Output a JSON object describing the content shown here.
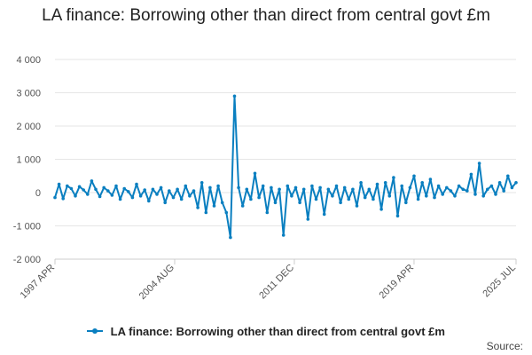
{
  "chart_data": {
    "type": "line",
    "title": "LA finance: Borrowing other than direct from central govt £m",
    "xlabel": "",
    "ylabel": "",
    "ylim": [
      -2000,
      4000
    ],
    "y_ticks": [
      -2000,
      -1000,
      0,
      1000,
      2000,
      3000,
      4000
    ],
    "y_tick_labels": [
      "-2 000",
      "-1 000",
      "0",
      "1 000",
      "2 000",
      "3 000",
      "4 000"
    ],
    "x_range": [
      "1997-04",
      "2025-07"
    ],
    "x_ticks": [
      {
        "date": "1997-04",
        "label": "1997 APR"
      },
      {
        "date": "2004-08",
        "label": "2004 AUG"
      },
      {
        "date": "2011-12",
        "label": "2011 DEC"
      },
      {
        "date": "2019-04",
        "label": "2019 APR"
      },
      {
        "date": "2025-07",
        "label": "2025 JUL"
      }
    ],
    "grid": true,
    "legend_position": "bottom",
    "color": "#0a7fc0",
    "series": [
      {
        "name": "LA finance: Borrowing other than direct from central govt £m",
        "points": [
          [
            "1997-04",
            -150
          ],
          [
            "1997-07",
            250
          ],
          [
            "1997-10",
            -180
          ],
          [
            "1998-01",
            200
          ],
          [
            "1998-04",
            120
          ],
          [
            "1998-07",
            -100
          ],
          [
            "1998-10",
            180
          ],
          [
            "1999-01",
            80
          ],
          [
            "1999-04",
            -50
          ],
          [
            "1999-07",
            350
          ],
          [
            "1999-10",
            100
          ],
          [
            "2000-01",
            -120
          ],
          [
            "2000-04",
            150
          ],
          [
            "2000-07",
            50
          ],
          [
            "2000-10",
            -80
          ],
          [
            "2001-01",
            200
          ],
          [
            "2001-04",
            -200
          ],
          [
            "2001-07",
            120
          ],
          [
            "2001-10",
            30
          ],
          [
            "2002-01",
            -150
          ],
          [
            "2002-04",
            250
          ],
          [
            "2002-07",
            -100
          ],
          [
            "2002-10",
            80
          ],
          [
            "2003-01",
            -250
          ],
          [
            "2003-04",
            100
          ],
          [
            "2003-07",
            -50
          ],
          [
            "2003-10",
            150
          ],
          [
            "2004-01",
            -300
          ],
          [
            "2004-04",
            50
          ],
          [
            "2004-07",
            -150
          ],
          [
            "2004-10",
            100
          ],
          [
            "2005-01",
            -200
          ],
          [
            "2005-04",
            200
          ],
          [
            "2005-07",
            -100
          ],
          [
            "2005-10",
            50
          ],
          [
            "2006-01",
            -450
          ],
          [
            "2006-04",
            300
          ],
          [
            "2006-07",
            -600
          ],
          [
            "2006-10",
            150
          ],
          [
            "2007-01",
            -400
          ],
          [
            "2007-04",
            200
          ],
          [
            "2007-07",
            -300
          ],
          [
            "2007-10",
            -600
          ],
          [
            "2008-01",
            -1350
          ],
          [
            "2008-04",
            2900
          ],
          [
            "2008-07",
            150
          ],
          [
            "2008-10",
            -400
          ],
          [
            "2009-01",
            100
          ],
          [
            "2009-04",
            -200
          ],
          [
            "2009-07",
            580
          ],
          [
            "2009-10",
            -150
          ],
          [
            "2010-01",
            200
          ],
          [
            "2010-04",
            -600
          ],
          [
            "2010-07",
            150
          ],
          [
            "2010-10",
            -300
          ],
          [
            "2011-01",
            100
          ],
          [
            "2011-04",
            -1280
          ],
          [
            "2011-07",
            200
          ],
          [
            "2011-10",
            -100
          ],
          [
            "2012-01",
            150
          ],
          [
            "2012-04",
            -300
          ],
          [
            "2012-07",
            100
          ],
          [
            "2012-10",
            -800
          ],
          [
            "2013-01",
            200
          ],
          [
            "2013-04",
            -200
          ],
          [
            "2013-07",
            150
          ],
          [
            "2013-10",
            -650
          ],
          [
            "2014-01",
            100
          ],
          [
            "2014-04",
            -100
          ],
          [
            "2014-07",
            200
          ],
          [
            "2014-10",
            -300
          ],
          [
            "2015-01",
            150
          ],
          [
            "2015-04",
            -200
          ],
          [
            "2015-07",
            100
          ],
          [
            "2015-10",
            -400
          ],
          [
            "2016-01",
            300
          ],
          [
            "2016-04",
            -150
          ],
          [
            "2016-07",
            100
          ],
          [
            "2016-10",
            -200
          ],
          [
            "2017-01",
            250
          ],
          [
            "2017-04",
            -500
          ],
          [
            "2017-07",
            300
          ],
          [
            "2017-10",
            -100
          ],
          [
            "2018-01",
            450
          ],
          [
            "2018-04",
            -700
          ],
          [
            "2018-07",
            200
          ],
          [
            "2018-10",
            -300
          ],
          [
            "2019-01",
            150
          ],
          [
            "2019-04",
            500
          ],
          [
            "2019-07",
            -200
          ],
          [
            "2019-10",
            300
          ],
          [
            "2020-01",
            -100
          ],
          [
            "2020-04",
            400
          ],
          [
            "2020-07",
            -150
          ],
          [
            "2020-10",
            200
          ],
          [
            "2021-01",
            -50
          ],
          [
            "2021-04",
            150
          ],
          [
            "2021-07",
            50
          ],
          [
            "2021-10",
            -100
          ],
          [
            "2022-01",
            200
          ],
          [
            "2022-04",
            100
          ],
          [
            "2022-07",
            50
          ],
          [
            "2022-10",
            550
          ],
          [
            "2023-01",
            -50
          ],
          [
            "2023-04",
            880
          ],
          [
            "2023-07",
            -100
          ],
          [
            "2023-10",
            100
          ],
          [
            "2024-01",
            200
          ],
          [
            "2024-04",
            -50
          ],
          [
            "2024-07",
            300
          ],
          [
            "2024-10",
            50
          ],
          [
            "2025-01",
            500
          ],
          [
            "2025-04",
            150
          ],
          [
            "2025-07",
            300
          ]
        ]
      }
    ]
  },
  "legend": {
    "label": "LA finance: Borrowing other than direct from central govt £m"
  },
  "source": {
    "label": "Source:"
  }
}
